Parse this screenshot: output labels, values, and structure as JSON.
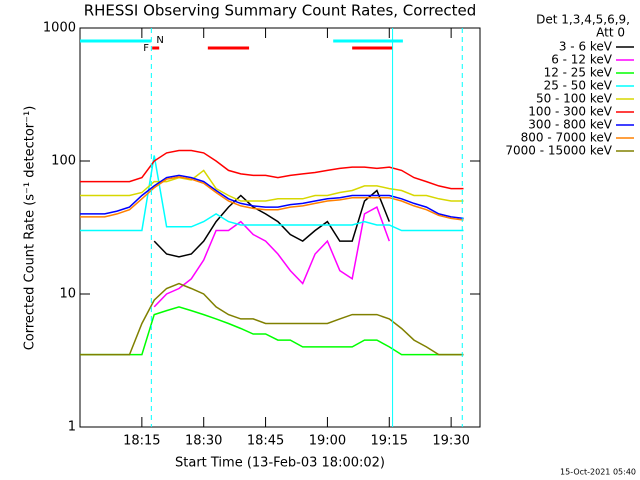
{
  "chart_data": {
    "type": "line",
    "title": "RHESSI Observing Summary Count Rates, Corrected",
    "x_label": "Start Time (13-Feb-03 18:00:02)",
    "y_label": "Corrected Count Rate (s⁻¹ detector⁻¹)",
    "legend_header": [
      "Det 1,3,4,5,6,9,",
      "Att 0"
    ],
    "footer": "15-Oct-2021 05:40",
    "annotations": [
      "F",
      "N"
    ],
    "ylog": true,
    "ylim": [
      1,
      1000
    ],
    "yticks": [
      1,
      10,
      100,
      1000
    ],
    "xlim": [
      0,
      97
    ],
    "xticks": [
      {
        "value": 15,
        "label": "18:15"
      },
      {
        "value": 30,
        "label": "18:30"
      },
      {
        "value": 45,
        "label": "18:45"
      },
      {
        "value": 60,
        "label": "19:00"
      },
      {
        "value": 75,
        "label": "19:15"
      },
      {
        "value": 90,
        "label": "19:30"
      }
    ],
    "intervals": [
      {
        "color": "#00ffff",
        "x": [
          0,
          17.3
        ]
      },
      {
        "color": "#00ffff",
        "x": [
          61.4,
          78.3
        ]
      },
      {
        "color": "#ff0000",
        "x": [
          17.5,
          19.2
        ]
      },
      {
        "color": "#ff0000",
        "x": [
          31,
          41
        ]
      },
      {
        "color": "#ff0000",
        "x": [
          66,
          75.8
        ]
      }
    ],
    "markers": [
      {
        "x": 17.3,
        "color": "#00ffff",
        "dashed": true
      },
      {
        "x": 75.8,
        "color": "#00ffff",
        "dashed": false
      },
      {
        "x": 92.7,
        "color": "#00ffff",
        "dashed": true
      }
    ],
    "x": [
      0,
      3,
      6,
      9,
      12,
      15,
      18,
      21,
      24,
      27,
      30,
      33,
      36,
      39,
      42,
      45,
      48,
      51,
      54,
      57,
      60,
      63,
      66,
      69,
      72,
      75,
      78,
      81,
      84,
      87,
      90,
      93
    ],
    "series": [
      {
        "name": "3 - 6 keV",
        "color": "#000000",
        "values": [
          null,
          null,
          null,
          null,
          null,
          null,
          25,
          20,
          19,
          20,
          25,
          35,
          45,
          55,
          45,
          40,
          35,
          28,
          25,
          30,
          35,
          25,
          25,
          50,
          60,
          35,
          null,
          null,
          null,
          null,
          null,
          null
        ]
      },
      {
        "name": "6 - 12 keV",
        "color": "#ff00ff",
        "values": [
          null,
          null,
          null,
          null,
          null,
          null,
          8,
          10,
          11,
          13,
          18,
          30,
          30,
          35,
          28,
          25,
          20,
          15,
          12,
          20,
          25,
          15,
          13,
          40,
          45,
          25,
          null,
          null,
          null,
          null,
          null,
          null
        ]
      },
      {
        "name": "12 - 25 keV",
        "color": "#00ff00",
        "values": [
          3.5,
          3.5,
          3.5,
          3.5,
          3.5,
          3.5,
          7,
          7.5,
          8,
          7.5,
          7,
          6.5,
          6,
          5.5,
          5,
          5,
          4.5,
          4.5,
          4,
          4,
          4,
          4,
          4,
          4.5,
          4.5,
          4,
          3.5,
          3.5,
          3.5,
          3.5,
          3.5,
          3.5
        ]
      },
      {
        "name": "25 - 50 keV",
        "color": "#00ffff",
        "values": [
          30,
          30,
          30,
          30,
          30,
          30,
          110,
          32,
          32,
          32,
          35,
          40,
          35,
          33,
          33,
          33,
          33,
          33,
          33,
          33,
          33,
          33,
          33,
          35,
          33,
          33,
          30,
          30,
          30,
          30,
          30,
          30
        ]
      },
      {
        "name": "50 - 100 keV",
        "color": "#d7d700",
        "values": [
          55,
          55,
          55,
          55,
          55,
          58,
          70,
          70,
          75,
          72,
          85,
          62,
          55,
          50,
          50,
          50,
          52,
          52,
          52,
          55,
          55,
          58,
          60,
          65,
          65,
          62,
          60,
          55,
          55,
          52,
          50,
          50
        ]
      },
      {
        "name": "100 - 300 keV",
        "color": "#ff0000",
        "values": [
          70,
          70,
          70,
          70,
          70,
          75,
          100,
          115,
          120,
          120,
          115,
          100,
          85,
          80,
          78,
          78,
          75,
          78,
          80,
          82,
          85,
          88,
          90,
          90,
          88,
          90,
          85,
          75,
          70,
          65,
          62,
          62
        ]
      },
      {
        "name": "300 - 800 keV",
        "color": "#0000ff",
        "values": [
          40,
          40,
          40,
          42,
          45,
          55,
          65,
          75,
          78,
          75,
          70,
          60,
          52,
          48,
          46,
          45,
          45,
          47,
          48,
          50,
          52,
          53,
          55,
          55,
          55,
          55,
          52,
          48,
          45,
          40,
          38,
          37
        ]
      },
      {
        "name": "800 - 7000 keV",
        "color": "#ff8000",
        "values": [
          38,
          38,
          38,
          40,
          43,
          52,
          63,
          73,
          76,
          73,
          68,
          58,
          50,
          46,
          44,
          43,
          43,
          45,
          46,
          48,
          50,
          51,
          53,
          53,
          53,
          53,
          50,
          46,
          43,
          39,
          37,
          36
        ]
      },
      {
        "name": "7000 - 15000 keV",
        "color": "#808000",
        "values": [
          3.5,
          3.5,
          3.5,
          3.5,
          3.5,
          6,
          9,
          11,
          12,
          11,
          10,
          8,
          7,
          6.5,
          6.5,
          6,
          6,
          6,
          6,
          6,
          6,
          6.5,
          7,
          7,
          7,
          6.5,
          5.5,
          4.5,
          4,
          3.5,
          3.5,
          3.5
        ]
      }
    ]
  }
}
